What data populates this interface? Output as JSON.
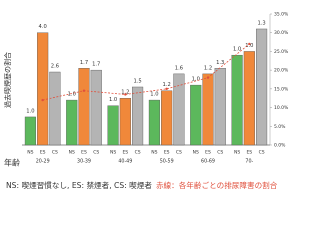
{
  "chart_data": {
    "type": "bar",
    "y_label": "過去喫煙歴の割合",
    "x_label": "年齢",
    "categories": [
      "20-29",
      "30-39",
      "40-49",
      "50-59",
      "60-69",
      "70-"
    ],
    "series": [
      {
        "name": "NS",
        "color": "#5cb85c",
        "values": [
          7.5,
          12,
          10.5,
          12,
          16,
          24
        ],
        "labels": [
          "1.0",
          "1.0",
          "1.0",
          "1.0",
          "1.0",
          "1.0"
        ]
      },
      {
        "name": "ES",
        "color": "#f0883a",
        "values": [
          30,
          20.5,
          12.5,
          14.5,
          19,
          25
        ],
        "labels": [
          "4.0",
          "1.7",
          "1.2",
          "1.2",
          "1.2",
          "1.0"
        ]
      },
      {
        "name": "CS",
        "color": "#b4b4b4",
        "values": [
          19.5,
          20,
          15.5,
          19,
          20.5,
          31
        ],
        "labels": [
          "2.6",
          "1.7",
          "1.5",
          "1.6",
          "1.3",
          "1.3"
        ]
      }
    ],
    "line": {
      "color": "#e0503c",
      "values": [
        12,
        14.5,
        13.5,
        15,
        18,
        27
      ]
    },
    "y2lim": [
      0,
      35
    ],
    "y2ticks": [
      {
        "value": 0,
        "label": "0.0%"
      },
      {
        "value": 5,
        "label": "5.0%"
      },
      {
        "value": 10,
        "label": "10.0%"
      },
      {
        "value": 15,
        "label": "15.0%"
      },
      {
        "value": 20,
        "label": "20.0%"
      },
      {
        "value": 25,
        "label": "25.0%"
      },
      {
        "value": 30,
        "label": "30.0%"
      },
      {
        "value": 35,
        "label": "35.0%"
      }
    ],
    "caption": "NS: 喫煙習慣なし, ES: 禁煙者, CS: 喫煙者",
    "caption_red": "赤線：各年齢ごとの排尿障害の割合"
  }
}
